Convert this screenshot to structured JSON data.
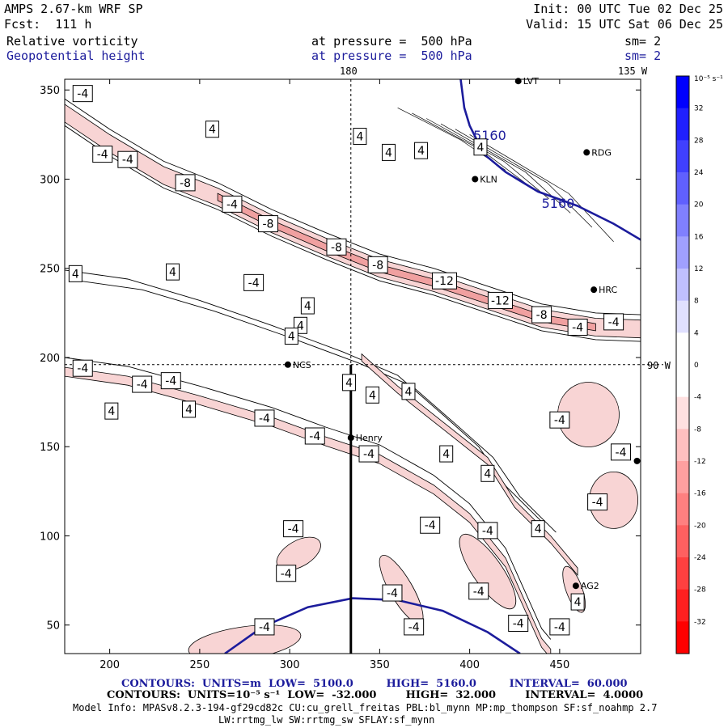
{
  "header": {
    "model": "AMPS 2.67-km WRF SP",
    "init": "Init: 00 UTC Tue 02 Dec 25",
    "forecast": "Fcst:  111 h",
    "valid": "Valid: 15 UTC Sat 06 Dec 25",
    "field1": {
      "name": "Relative vorticity",
      "pressure": "at pressure =  500 hPa",
      "smooth": "sm= 2"
    },
    "field2": {
      "name": "Geopotential height",
      "pressure": "at pressure =  500 hPa",
      "smooth": "sm= 2"
    },
    "lon_top_180": "180",
    "lon_top_135": "135 W",
    "lat_right_90": "90 W"
  },
  "footer": {
    "height_contours": "CONTOURS:  UNITS=m  LOW=  5100.0         HIGH=  5160.0         INTERVAL=  60.000",
    "vort_contours": "CONTOURS:  UNITS=10⁻⁵ s⁻¹  LOW=  -32.000        HIGH=  32.000        INTERVAL=  4.0000",
    "model_info": "Model Info: MPASv8.2.3-194-gf29cd82c CU:cu_grell_freitas PBL:bl_mynn MP:mp_thompson SF:sf_noahmp 2.7",
    "model_info2": "LW:rrtmg_lw SW:rrtmg_sw SFLAY:sf_mynn"
  },
  "colors": {
    "height_contour": "#1c1c9c",
    "negative_fill": "#f8d4d4",
    "strong_negative_fill": "#f0a0a0",
    "line": "#000000"
  },
  "chart_data": {
    "type": "contour",
    "xlim": [
      175,
      495
    ],
    "ylim": [
      34,
      356
    ],
    "xticks": [
      200,
      250,
      300,
      350,
      400,
      450
    ],
    "yticks": [
      50,
      100,
      150,
      200,
      250,
      300,
      350
    ],
    "colorbar": {
      "unit": "10⁻⁵ s⁻¹",
      "ticks": [
        "32",
        "28",
        "24",
        "20",
        "16",
        "12",
        "8",
        "4",
        "0",
        "-4",
        "-8",
        "-12",
        "-16",
        "-20",
        "-24",
        "-28",
        "-32"
      ],
      "colors": [
        "#0000ff",
        "#2020ff",
        "#4040ff",
        "#6060ff",
        "#8080ff",
        "#a0a0ff",
        "#c0c0ff",
        "#e0e0ff",
        "#ffffff",
        "#ffffff",
        "#ffe0e0",
        "#ffc0c0",
        "#ffa0a0",
        "#ff8080",
        "#ff6060",
        "#ff4040",
        "#ff2020",
        "#ff0000"
      ]
    },
    "height_contours": [
      {
        "label": "5160",
        "points": [
          [
            395,
            356
          ],
          [
            397,
            340
          ],
          [
            400,
            330
          ],
          [
            408,
            314
          ],
          [
            420,
            304
          ],
          [
            438,
            293
          ],
          [
            460,
            285
          ],
          [
            480,
            275
          ],
          [
            495,
            266
          ]
        ]
      },
      {
        "label": "5160",
        "points": [
          [
            264,
            34
          ],
          [
            285,
            49
          ],
          [
            310,
            60
          ],
          [
            335,
            65
          ],
          [
            360,
            64
          ],
          [
            385,
            58
          ],
          [
            410,
            46
          ],
          [
            428,
            34
          ]
        ]
      }
    ],
    "vorticity_labels": [
      {
        "v": "-4",
        "x": 185,
        "y": 348
      },
      {
        "v": "4",
        "x": 257,
        "y": 328
      },
      {
        "v": "4",
        "x": 339,
        "y": 324
      },
      {
        "v": "4",
        "x": 355,
        "y": 315
      },
      {
        "v": "4",
        "x": 373,
        "y": 316
      },
      {
        "v": "4",
        "x": 406,
        "y": 318
      },
      {
        "v": "-4",
        "x": 196,
        "y": 314
      },
      {
        "v": "-4",
        "x": 210,
        "y": 311
      },
      {
        "v": "-8",
        "x": 242,
        "y": 298
      },
      {
        "v": "-4",
        "x": 268,
        "y": 286
      },
      {
        "v": "-8",
        "x": 288,
        "y": 275
      },
      {
        "v": "-8",
        "x": 326,
        "y": 262
      },
      {
        "v": "-8",
        "x": 349,
        "y": 252
      },
      {
        "v": "-12",
        "x": 386,
        "y": 243
      },
      {
        "v": "-12",
        "x": 417,
        "y": 232
      },
      {
        "v": "-8",
        "x": 440,
        "y": 224
      },
      {
        "v": "-4",
        "x": 460,
        "y": 217
      },
      {
        "v": "-4",
        "x": 480,
        "y": 220
      },
      {
        "v": "4",
        "x": 181,
        "y": 247
      },
      {
        "v": "4",
        "x": 235,
        "y": 248
      },
      {
        "v": "-4",
        "x": 280,
        "y": 242
      },
      {
        "v": "4",
        "x": 310,
        "y": 229
      },
      {
        "v": "4",
        "x": 306,
        "y": 218
      },
      {
        "v": "4",
        "x": 301,
        "y": 212
      },
      {
        "v": "-4",
        "x": 185,
        "y": 194
      },
      {
        "v": "-4",
        "x": 218,
        "y": 185
      },
      {
        "v": "-4",
        "x": 234,
        "y": 187
      },
      {
        "v": "4",
        "x": 201,
        "y": 170
      },
      {
        "v": "4",
        "x": 244,
        "y": 171
      },
      {
        "v": "-4",
        "x": 286,
        "y": 166
      },
      {
        "v": "-4",
        "x": 314,
        "y": 156
      },
      {
        "v": "-4",
        "x": 344,
        "y": 146
      },
      {
        "v": "4",
        "x": 333,
        "y": 186
      },
      {
        "v": "4",
        "x": 346,
        "y": 179
      },
      {
        "v": "4",
        "x": 366,
        "y": 181
      },
      {
        "v": "4",
        "x": 387,
        "y": 146
      },
      {
        "v": "4",
        "x": 410,
        "y": 135
      },
      {
        "v": "-4",
        "x": 450,
        "y": 165
      },
      {
        "v": "-4",
        "x": 484,
        "y": 147
      },
      {
        "v": "-4",
        "x": 471,
        "y": 119
      },
      {
        "v": "-4",
        "x": 378,
        "y": 106
      },
      {
        "v": "-4",
        "x": 410,
        "y": 103
      },
      {
        "v": "4",
        "x": 438,
        "y": 104
      },
      {
        "v": "-4",
        "x": 302,
        "y": 104
      },
      {
        "v": "-4",
        "x": 298,
        "y": 79
      },
      {
        "v": "-4",
        "x": 357,
        "y": 68
      },
      {
        "v": "-4",
        "x": 405,
        "y": 69
      },
      {
        "v": "4",
        "x": 460,
        "y": 63
      },
      {
        "v": "-4",
        "x": 427,
        "y": 51
      },
      {
        "v": "-4",
        "x": 450,
        "y": 49
      },
      {
        "v": "-4",
        "x": 286,
        "y": 49
      },
      {
        "v": "-4",
        "x": 369,
        "y": 49
      }
    ],
    "stations": [
      {
        "name": "LVT",
        "x": 427,
        "y": 355
      },
      {
        "name": "RDG",
        "x": 465,
        "y": 315
      },
      {
        "name": "KLN",
        "x": 403,
        "y": 300
      },
      {
        "name": "HRC",
        "x": 469,
        "y": 238
      },
      {
        "name": "NCS",
        "x": 299,
        "y": 196
      },
      {
        "name": "Henry",
        "x": 334,
        "y": 155
      },
      {
        "name": "AG2",
        "x": 459,
        "y": 72
      },
      {
        "name": "",
        "x": 493,
        "y": 142
      }
    ],
    "cross_lines": {
      "vertical_x": 334,
      "horizontal_y": 196
    },
    "section_line": {
      "x": 334,
      "y_from": 196,
      "y_to": 34
    }
  }
}
